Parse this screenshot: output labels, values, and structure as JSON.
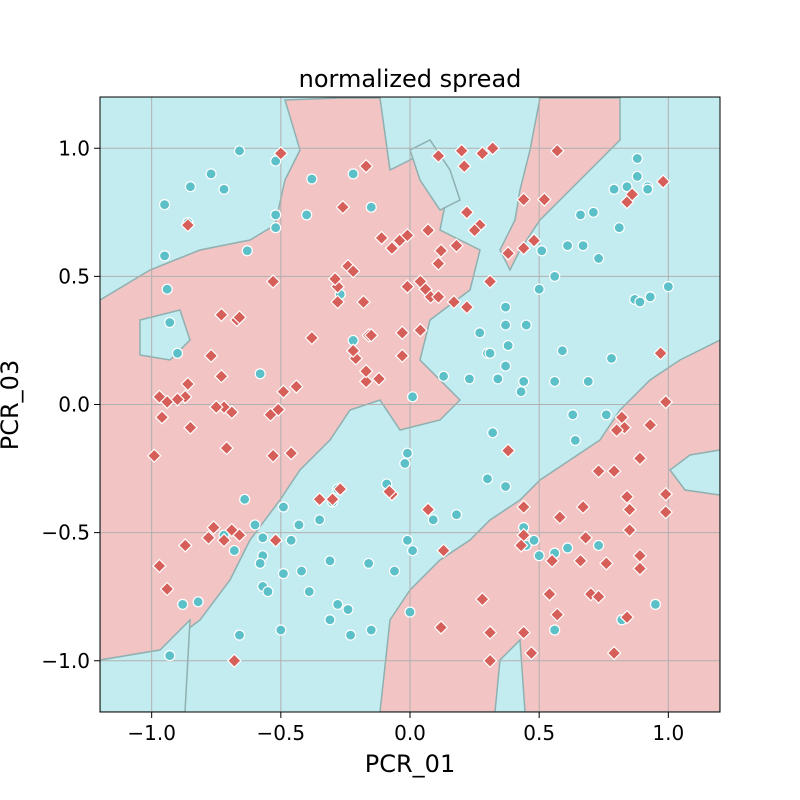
{
  "colors": {
    "class_a_region": "#c3ecf0",
    "class_b_region": "#f2c4c4",
    "boundary": "#8fb0b0",
    "class_a_marker": "#5bc0c8",
    "class_b_marker": "#d65f5a",
    "grid": "#b0b0b0"
  },
  "chart_data": {
    "type": "scatter",
    "title": "normalized spread",
    "xlabel": "PCR_01",
    "ylabel": "PCR_03",
    "xlim": [
      -1.2,
      1.2
    ],
    "ylim": [
      -1.2,
      1.2
    ],
    "grid": true,
    "x_ticks": [
      -1.0,
      -0.5,
      0.0,
      0.5,
      1.0
    ],
    "y_ticks": [
      -1.0,
      -0.5,
      0.0,
      0.5,
      1.0
    ],
    "x_tick_labels": [
      "−1.0",
      "−0.5",
      "0.0",
      "0.5",
      "1.0"
    ],
    "y_tick_labels": [
      "−1.0",
      "−0.5",
      "0.0",
      "0.5",
      "1.0"
    ],
    "background": "decision regions: cyan for circle class, pink for diamond class",
    "series": [
      {
        "marker": "circle",
        "color": "class_a_marker",
        "points": [
          [
            -0.66,
            0.99
          ],
          [
            -0.52,
            0.95
          ],
          [
            -0.72,
            0.84
          ],
          [
            -0.85,
            0.85
          ],
          [
            -0.77,
            0.9
          ],
          [
            -0.38,
            0.88
          ],
          [
            -0.22,
            0.9
          ],
          [
            -0.15,
            0.77
          ],
          [
            -0.52,
            0.74
          ],
          [
            -0.52,
            0.69
          ],
          [
            -0.4,
            0.74
          ],
          [
            -0.95,
            0.78
          ],
          [
            -0.86,
            0.71
          ],
          [
            -0.63,
            0.6
          ],
          [
            -0.95,
            0.58
          ],
          [
            -0.94,
            0.45
          ],
          [
            -0.93,
            0.32
          ],
          [
            -0.9,
            0.2
          ],
          [
            -0.27,
            0.43
          ],
          [
            -0.22,
            0.25
          ],
          [
            -0.58,
            0.12
          ],
          [
            0.01,
            0.03
          ],
          [
            0.13,
            0.11
          ],
          [
            0.23,
            0.1
          ],
          [
            0.34,
            0.1
          ],
          [
            0.3,
            0.2
          ],
          [
            0.38,
            0.23
          ],
          [
            0.37,
            0.15
          ],
          [
            0.43,
            0.05
          ],
          [
            0.44,
            0.09
          ],
          [
            0.37,
            0.38
          ],
          [
            0.27,
            0.28
          ],
          [
            0.31,
            0.2
          ],
          [
            0.37,
            0.31
          ],
          [
            0.45,
            0.31
          ],
          [
            0.5,
            0.45
          ],
          [
            0.51,
            0.6
          ],
          [
            0.56,
            0.5
          ],
          [
            0.61,
            0.62
          ],
          [
            0.67,
            0.62
          ],
          [
            0.59,
            0.21
          ],
          [
            0.66,
            0.74
          ],
          [
            0.71,
            0.75
          ],
          [
            0.73,
            0.57
          ],
          [
            0.81,
            0.69
          ],
          [
            0.79,
            0.84
          ],
          [
            0.84,
            0.85
          ],
          [
            0.88,
            0.89
          ],
          [
            0.88,
            0.96
          ],
          [
            0.92,
            0.85
          ],
          [
            0.92,
            0.84
          ],
          [
            0.87,
            0.41
          ],
          [
            0.89,
            0.4
          ],
          [
            0.93,
            0.42
          ],
          [
            1.0,
            0.46
          ],
          [
            0.56,
            0.09
          ],
          [
            0.78,
            0.18
          ],
          [
            0.69,
            0.09
          ],
          [
            0.63,
            -0.04
          ],
          [
            0.76,
            -0.04
          ],
          [
            0.64,
            -0.14
          ],
          [
            0.32,
            -0.11
          ],
          [
            -0.01,
            -0.19
          ],
          [
            -0.02,
            -0.23
          ],
          [
            -0.09,
            -0.31
          ],
          [
            0.3,
            -0.29
          ],
          [
            0.37,
            -0.32
          ],
          [
            0.09,
            -0.45
          ],
          [
            0.18,
            -0.43
          ],
          [
            -0.01,
            -0.53
          ],
          [
            -0.28,
            -0.33
          ],
          [
            -0.3,
            -0.38
          ],
          [
            -0.35,
            -0.45
          ],
          [
            -0.43,
            -0.47
          ],
          [
            -0.46,
            -0.53
          ],
          [
            -0.49,
            -0.4
          ],
          [
            -0.64,
            -0.37
          ],
          [
            -0.57,
            -0.52
          ],
          [
            -0.57,
            -0.59
          ],
          [
            -0.58,
            -0.62
          ],
          [
            -0.57,
            -0.71
          ],
          [
            -0.55,
            -0.73
          ],
          [
            -0.39,
            -0.73
          ],
          [
            -0.49,
            -0.66
          ],
          [
            -0.42,
            -0.65
          ],
          [
            -0.31,
            -0.61
          ],
          [
            -0.28,
            -0.78
          ],
          [
            -0.31,
            -0.84
          ],
          [
            -0.23,
            -0.9
          ],
          [
            -0.24,
            -0.8
          ],
          [
            -0.16,
            -0.62
          ],
          [
            -0.15,
            -0.88
          ],
          [
            -0.06,
            -0.65
          ],
          [
            0.01,
            -0.57
          ],
          [
            0.0,
            -0.81
          ],
          [
            0.44,
            -0.48
          ],
          [
            0.45,
            -0.55
          ],
          [
            0.5,
            -0.59
          ],
          [
            0.48,
            -0.53
          ],
          [
            0.56,
            -0.58
          ],
          [
            0.61,
            -0.56
          ],
          [
            0.56,
            -0.88
          ],
          [
            0.73,
            -0.55
          ],
          [
            0.82,
            -0.84
          ],
          [
            0.95,
            -0.78
          ],
          [
            -0.72,
            -0.51
          ],
          [
            -0.82,
            -0.77
          ],
          [
            -0.88,
            -0.78
          ],
          [
            -0.93,
            -0.98
          ],
          [
            -0.66,
            -0.9
          ],
          [
            -0.5,
            -0.88
          ],
          [
            -0.6,
            -0.47
          ],
          [
            -0.68,
            -0.57
          ]
        ]
      },
      {
        "marker": "diamond",
        "color": "class_b_marker",
        "points": [
          [
            -0.5,
            0.98
          ],
          [
            -0.53,
            0.48
          ],
          [
            -0.17,
            0.93
          ],
          [
            -0.26,
            0.77
          ],
          [
            -0.24,
            0.54
          ],
          [
            -0.11,
            0.65
          ],
          [
            -0.07,
            0.61
          ],
          [
            -0.04,
            0.64
          ],
          [
            -0.01,
            0.66
          ],
          [
            0.07,
            0.68
          ],
          [
            0.11,
            0.97
          ],
          [
            0.2,
            0.99
          ],
          [
            0.28,
            0.98
          ],
          [
            0.32,
            1.0
          ],
          [
            0.21,
            0.93
          ],
          [
            0.22,
            0.75
          ],
          [
            0.27,
            0.7
          ],
          [
            0.25,
            0.68
          ],
          [
            0.18,
            0.62
          ],
          [
            0.12,
            0.6
          ],
          [
            0.11,
            0.55
          ],
          [
            0.38,
            0.59
          ],
          [
            0.44,
            0.61
          ],
          [
            0.48,
            0.64
          ],
          [
            0.44,
            0.8
          ],
          [
            0.57,
            0.99
          ],
          [
            0.52,
            0.8
          ],
          [
            0.84,
            0.79
          ],
          [
            0.86,
            0.82
          ],
          [
            0.98,
            0.87
          ],
          [
            0.97,
            0.2
          ],
          [
            0.99,
            0.01
          ],
          [
            -0.01,
            0.46
          ],
          [
            0.04,
            0.48
          ],
          [
            0.06,
            0.45
          ],
          [
            0.08,
            0.42
          ],
          [
            0.11,
            0.42
          ],
          [
            0.17,
            0.4
          ],
          [
            0.22,
            0.38
          ],
          [
            0.31,
            0.48
          ],
          [
            -0.28,
            0.4
          ],
          [
            -0.28,
            0.46
          ],
          [
            -0.29,
            0.49
          ],
          [
            -0.22,
            0.52
          ],
          [
            -0.16,
            0.27
          ],
          [
            -0.21,
            0.18
          ],
          [
            -0.22,
            0.21
          ],
          [
            -0.17,
            0.09
          ],
          [
            -0.17,
            0.13
          ],
          [
            -0.12,
            0.1
          ],
          [
            -0.03,
            0.19
          ],
          [
            -0.03,
            0.28
          ],
          [
            0.04,
            0.29
          ],
          [
            -0.38,
            0.26
          ],
          [
            -0.44,
            0.07
          ],
          [
            -0.49,
            0.05
          ],
          [
            -0.51,
            -0.02
          ],
          [
            -0.67,
            0.33
          ],
          [
            -0.66,
            0.34
          ],
          [
            -0.73,
            0.35
          ],
          [
            -0.77,
            0.19
          ],
          [
            -0.73,
            0.11
          ],
          [
            -0.69,
            -0.03
          ],
          [
            -0.72,
            -0.01
          ],
          [
            -0.75,
            -0.01
          ],
          [
            -0.71,
            -0.17
          ],
          [
            -0.86,
            0.08
          ],
          [
            -0.87,
            0.03
          ],
          [
            -0.9,
            0.02
          ],
          [
            -0.97,
            0.03
          ],
          [
            -0.96,
            -0.05
          ],
          [
            -0.85,
            -0.09
          ],
          [
            -0.99,
            -0.2
          ],
          [
            -0.86,
            0.7
          ],
          [
            -0.94,
            0.01
          ],
          [
            -0.54,
            -0.04
          ],
          [
            -0.53,
            -0.2
          ],
          [
            -0.46,
            -0.19
          ],
          [
            -0.3,
            -0.37
          ],
          [
            -0.27,
            -0.33
          ],
          [
            -0.35,
            -0.37
          ],
          [
            -0.52,
            -0.53
          ],
          [
            -0.69,
            -0.49
          ],
          [
            -0.72,
            -0.53
          ],
          [
            -0.76,
            -0.48
          ],
          [
            -0.78,
            -0.52
          ],
          [
            -0.66,
            -0.51
          ],
          [
            -0.87,
            -0.55
          ],
          [
            -0.97,
            -0.63
          ],
          [
            -0.94,
            -0.72
          ],
          [
            -0.68,
            -1.0
          ],
          [
            -0.07,
            -0.35
          ],
          [
            0.07,
            -0.41
          ],
          [
            0.38,
            -0.18
          ],
          [
            0.44,
            -0.4
          ],
          [
            0.44,
            -0.51
          ],
          [
            0.58,
            -0.44
          ],
          [
            0.55,
            -0.61
          ],
          [
            0.54,
            -0.74
          ],
          [
            0.57,
            -0.82
          ],
          [
            0.66,
            -0.61
          ],
          [
            0.67,
            -0.4
          ],
          [
            0.68,
            -0.52
          ],
          [
            0.7,
            -0.74
          ],
          [
            0.73,
            -0.75
          ],
          [
            0.76,
            -0.62
          ],
          [
            0.73,
            -0.26
          ],
          [
            0.79,
            -0.26
          ],
          [
            0.84,
            -0.36
          ],
          [
            0.85,
            -0.41
          ],
          [
            0.85,
            -0.49
          ],
          [
            0.89,
            -0.59
          ],
          [
            0.89,
            -0.64
          ],
          [
            0.89,
            -0.21
          ],
          [
            0.99,
            -0.35
          ],
          [
            0.99,
            -0.42
          ],
          [
            0.93,
            -0.08
          ],
          [
            0.83,
            -0.09
          ],
          [
            0.8,
            -0.1
          ],
          [
            0.82,
            -0.05
          ],
          [
            0.44,
            -0.89
          ],
          [
            0.47,
            -0.97
          ],
          [
            0.31,
            -1.0
          ],
          [
            0.31,
            -0.89
          ],
          [
            0.28,
            -0.76
          ],
          [
            0.12,
            -0.87
          ],
          [
            0.13,
            -0.57
          ],
          [
            0.43,
            -0.55
          ],
          [
            0.79,
            -0.97
          ],
          [
            0.84,
            -0.83
          ],
          [
            -0.08,
            -0.34
          ],
          [
            -0.18,
            0.4
          ],
          [
            -0.15,
            0.27
          ]
        ]
      }
    ]
  }
}
